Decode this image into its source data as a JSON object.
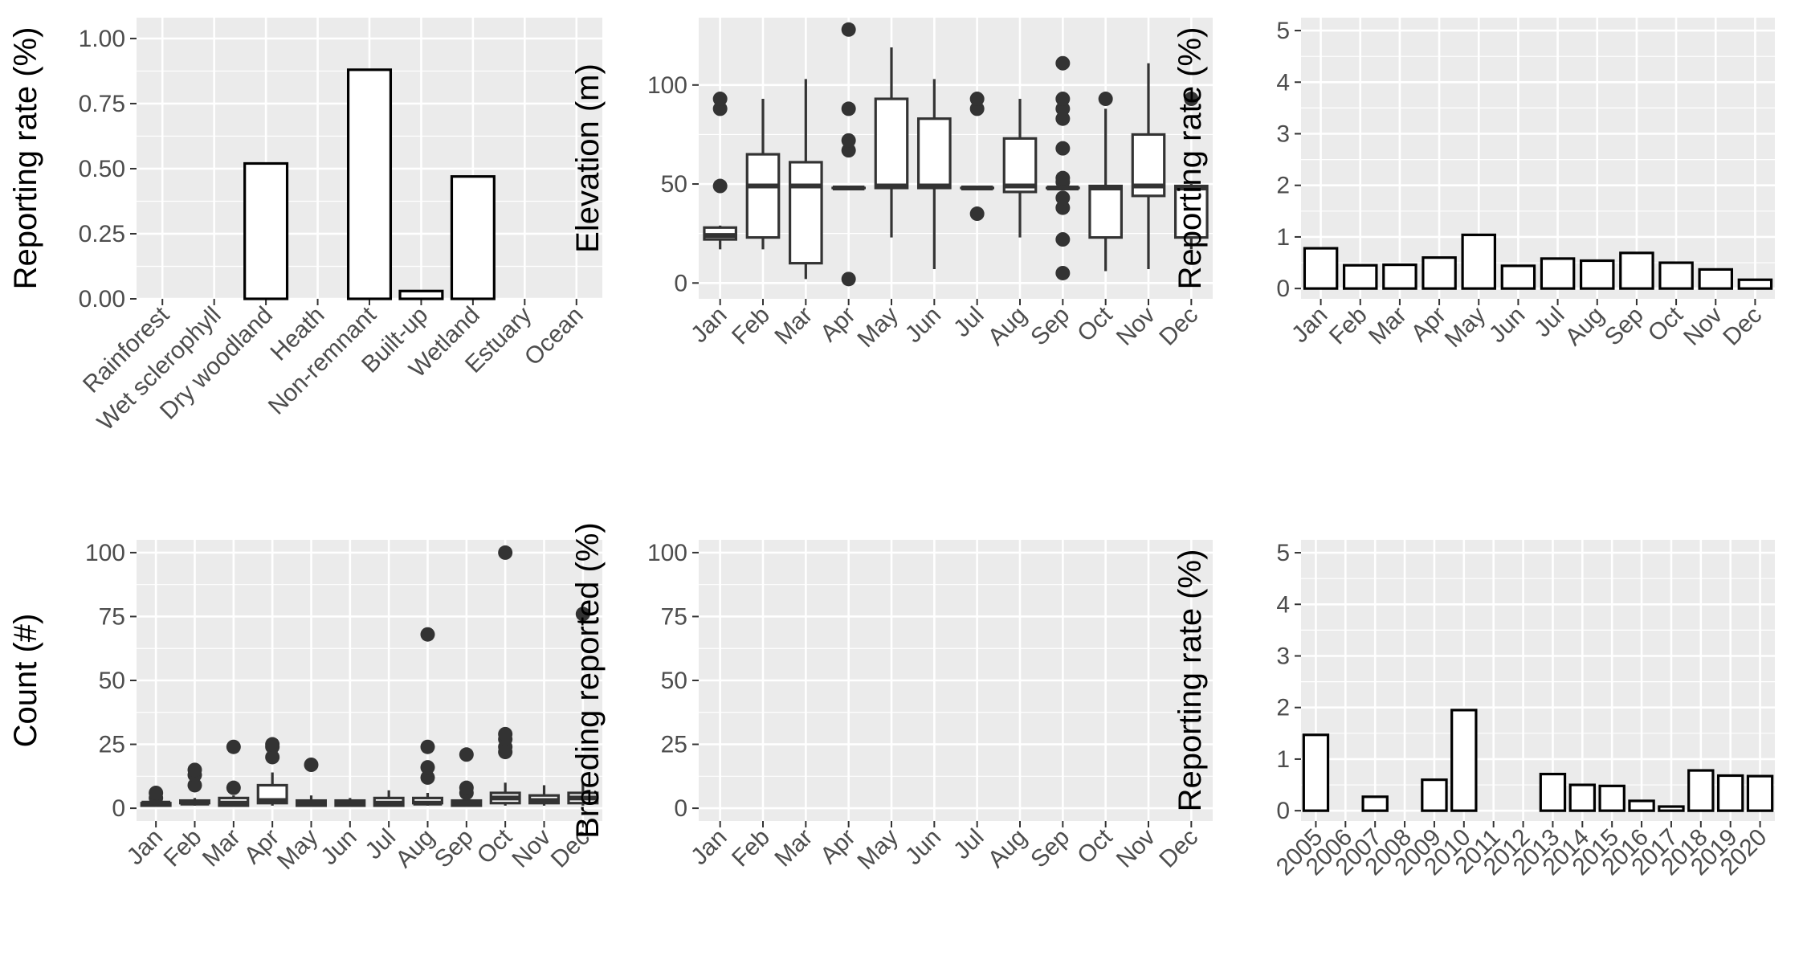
{
  "chart_data": [
    {
      "id": "habitat",
      "type": "bar",
      "ylabel": "Reporting rate (%)",
      "ylim": [
        0,
        1.08
      ],
      "yticks": [
        "0.00",
        "0.25",
        "0.50",
        "0.75",
        "1.00"
      ],
      "categories": [
        "Rainforest",
        "Wet sclerophyll",
        "Dry woodland",
        "Heath",
        "Non-remnant",
        "Built-up",
        "Wetland",
        "Estuary",
        "Ocean"
      ],
      "values": [
        0,
        0,
        0.52,
        0,
        0.88,
        0.03,
        0.47,
        0,
        0
      ],
      "grid": true
    },
    {
      "id": "elevation",
      "type": "box",
      "ylabel": "Elevation (m)",
      "ylim": [
        -8,
        134
      ],
      "yticks": [
        "0",
        "50",
        "100"
      ],
      "categories": [
        "Jan",
        "Feb",
        "Mar",
        "Apr",
        "May",
        "Jun",
        "Jul",
        "Aug",
        "Sep",
        "Oct",
        "Nov",
        "Dec"
      ],
      "boxes": [
        {
          "low": 17,
          "q1": 22,
          "median": 24,
          "q3": 28,
          "high": 29,
          "outliers": [
            49,
            88,
            93
          ]
        },
        {
          "low": 17,
          "q1": 23,
          "median": 49,
          "q3": 65,
          "high": 93,
          "outliers": []
        },
        {
          "low": 2,
          "q1": 10,
          "median": 49,
          "q3": 61,
          "high": 103,
          "outliers": []
        },
        {
          "low": 48,
          "q1": 48,
          "median": 48,
          "q3": 48,
          "high": 48,
          "outliers": [
            2,
            67,
            72,
            88,
            128
          ]
        },
        {
          "low": 23,
          "q1": 48,
          "median": 49,
          "q3": 93,
          "high": 119,
          "outliers": []
        },
        {
          "low": 7,
          "q1": 48,
          "median": 49,
          "q3": 83,
          "high": 103,
          "outliers": []
        },
        {
          "low": 48,
          "q1": 48,
          "median": 48,
          "q3": 48,
          "high": 48,
          "outliers": [
            35,
            88,
            93
          ]
        },
        {
          "low": 23,
          "q1": 46,
          "median": 49,
          "q3": 73,
          "high": 93,
          "outliers": []
        },
        {
          "low": 48,
          "q1": 48,
          "median": 48,
          "q3": 48,
          "high": 48,
          "outliers": [
            5,
            22,
            38,
            43,
            51,
            53,
            68,
            83,
            88,
            93,
            111
          ]
        },
        {
          "low": 6,
          "q1": 23,
          "median": 48,
          "q3": 49,
          "high": 88,
          "outliers": [
            93
          ]
        },
        {
          "low": 7,
          "q1": 44,
          "median": 49,
          "q3": 75,
          "high": 111,
          "outliers": []
        },
        {
          "low": 17,
          "q1": 23,
          "median": 48,
          "q3": 49,
          "high": 50,
          "outliers": [
            93
          ]
        }
      ],
      "grid": true
    },
    {
      "id": "monthly-rate",
      "type": "bar",
      "ylabel": "Reporting rate (%)",
      "ylim": [
        -0.2,
        5.25
      ],
      "yticks": [
        "0",
        "1",
        "2",
        "3",
        "4",
        "5"
      ],
      "categories": [
        "Jan",
        "Feb",
        "Mar",
        "Apr",
        "May",
        "Jun",
        "Jul",
        "Aug",
        "Sep",
        "Oct",
        "Nov",
        "Dec"
      ],
      "values": [
        0.78,
        0.45,
        0.46,
        0.6,
        1.04,
        0.44,
        0.58,
        0.54,
        0.69,
        0.5,
        0.37,
        0.17
      ],
      "grid": true
    },
    {
      "id": "count",
      "type": "box",
      "ylabel": "Count (#)",
      "ylim": [
        -5,
        105
      ],
      "yticks": [
        "0",
        "25",
        "50",
        "75",
        "100"
      ],
      "categories": [
        "Jan",
        "Feb",
        "Mar",
        "Apr",
        "May",
        "Jun",
        "Jul",
        "Aug",
        "Sep",
        "Oct",
        "Nov",
        "Dec"
      ],
      "boxes": [
        {
          "low": 1,
          "q1": 1,
          "median": 2,
          "q3": 2,
          "high": 3,
          "outliers": [
            4,
            6
          ]
        },
        {
          "low": 1,
          "q1": 2,
          "median": 2,
          "q3": 3,
          "high": 4,
          "outliers": [
            9,
            13,
            15
          ]
        },
        {
          "low": 1,
          "q1": 1,
          "median": 2,
          "q3": 4,
          "high": 5,
          "outliers": [
            8,
            24
          ]
        },
        {
          "low": 1,
          "q1": 2,
          "median": 3,
          "q3": 9,
          "high": 14,
          "outliers": [
            20,
            24,
            25
          ]
        },
        {
          "low": 1,
          "q1": 1,
          "median": 2,
          "q3": 3,
          "high": 5,
          "outliers": [
            17
          ]
        },
        {
          "low": 1,
          "q1": 1,
          "median": 2,
          "q3": 3,
          "high": 4,
          "outliers": []
        },
        {
          "low": 1,
          "q1": 1,
          "median": 2,
          "q3": 4,
          "high": 7,
          "outliers": []
        },
        {
          "low": 1,
          "q1": 2,
          "median": 2,
          "q3": 4,
          "high": 6,
          "outliers": [
            12,
            16,
            24,
            68
          ]
        },
        {
          "low": 1,
          "q1": 1,
          "median": 2,
          "q3": 3,
          "high": 5,
          "outliers": [
            6,
            8,
            21
          ]
        },
        {
          "low": 1,
          "q1": 2,
          "median": 4,
          "q3": 6,
          "high": 10,
          "outliers": [
            22,
            24,
            27,
            29,
            100
          ]
        },
        {
          "low": 1,
          "q1": 2,
          "median": 3,
          "q3": 5,
          "high": 9,
          "outliers": []
        },
        {
          "low": 1,
          "q1": 2,
          "median": 4,
          "q3": 6,
          "high": 10,
          "outliers": [
            76
          ]
        }
      ],
      "grid": true
    },
    {
      "id": "breeding",
      "type": "bar",
      "ylabel": "Breeding reported (%)",
      "ylim": [
        -5,
        105
      ],
      "yticks": [
        "0",
        "25",
        "50",
        "75",
        "100"
      ],
      "categories": [
        "Jan",
        "Feb",
        "Mar",
        "Apr",
        "May",
        "Jun",
        "Jul",
        "Aug",
        "Sep",
        "Oct",
        "Nov",
        "Dec"
      ],
      "values": [
        0,
        0,
        0,
        0,
        0,
        0,
        0,
        0,
        0,
        0,
        0,
        0
      ],
      "grid": true
    },
    {
      "id": "yearly-rate",
      "type": "bar",
      "ylabel": "Reporting rate (%)",
      "ylim": [
        -0.2,
        5.25
      ],
      "yticks": [
        "0",
        "1",
        "2",
        "3",
        "4",
        "5"
      ],
      "categories": [
        "2005",
        "2006",
        "2007",
        "2008",
        "2009",
        "2010",
        "2011",
        "2012",
        "2013",
        "2014",
        "2015",
        "2016",
        "2017",
        "2018",
        "2019",
        "2020"
      ],
      "values": [
        1.47,
        0,
        0.27,
        0,
        0.6,
        1.95,
        0,
        0,
        0.71,
        0.5,
        0.48,
        0.19,
        0.08,
        0.78,
        0.68,
        0.67
      ],
      "grid": true
    }
  ]
}
